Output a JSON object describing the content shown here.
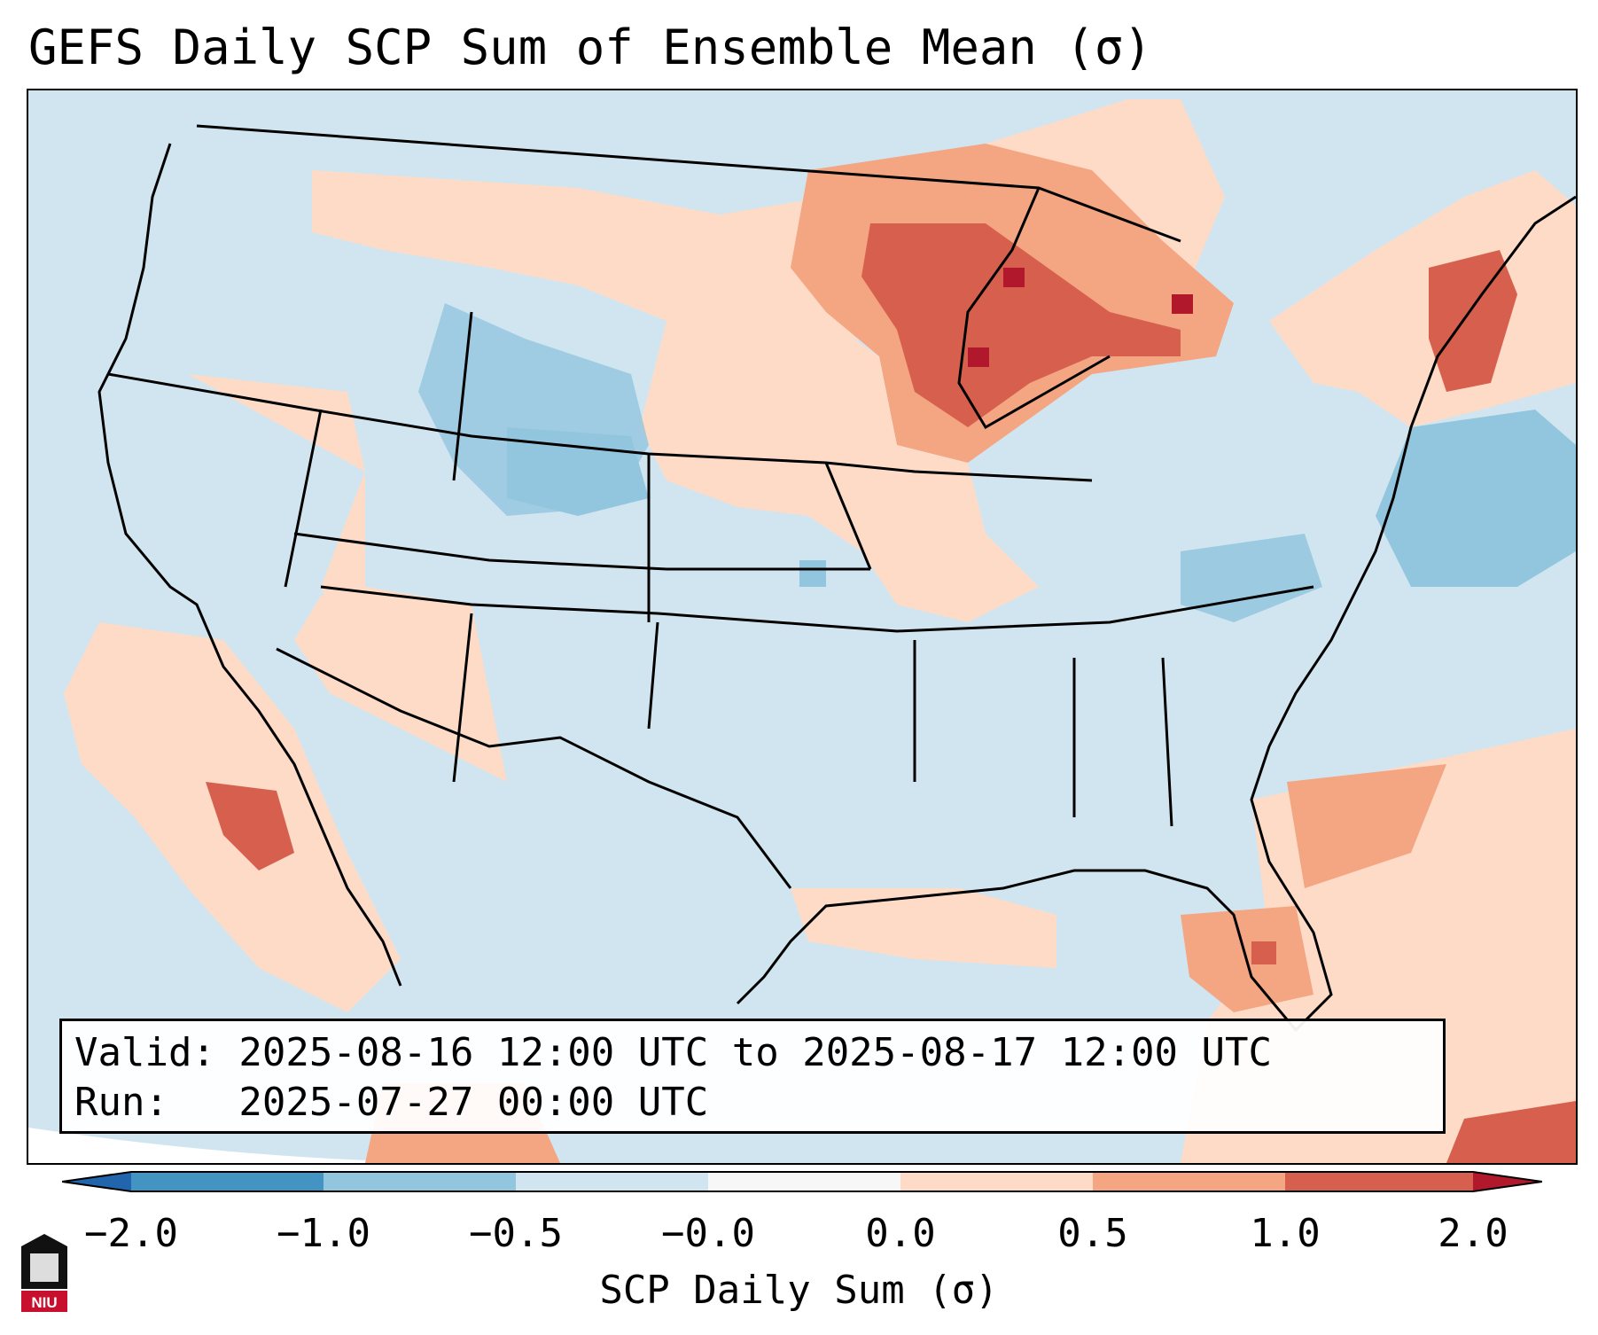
{
  "title": "GEFS Daily SCP Sum of Ensemble Mean (σ)",
  "info": {
    "valid_line": "Valid: 2025-08-16 12:00 UTC to 2025-08-17 12:00 UTC",
    "run_line": "Run:   2025-07-27 00:00 UTC"
  },
  "colorbar": {
    "label": "SCP Daily Sum (σ)",
    "ticks": [
      "−2.0",
      "−1.0",
      "−0.5",
      "−0.0",
      "0.0",
      "0.5",
      "1.0",
      "2.0"
    ],
    "bins": [
      {
        "range": "< -2.0",
        "color": "#2166ac"
      },
      {
        "range": "-2.0 to -1.0",
        "color": "#4393c3"
      },
      {
        "range": "-1.0 to -0.5",
        "color": "#92c5de"
      },
      {
        "range": "-0.5 to -0.0",
        "color": "#d1e5f0"
      },
      {
        "range": "-0.0 to 0.0",
        "color": "#f7f7f7"
      },
      {
        "range": "0.0 to 0.5",
        "color": "#fddbc7"
      },
      {
        "range": "0.5 to 1.0",
        "color": "#f4a582"
      },
      {
        "range": "1.0 to 2.0",
        "color": "#d6604d"
      },
      {
        "range": "> 2.0",
        "color": "#b2182b"
      }
    ]
  },
  "logo": {
    "text": "NIU",
    "color": "#c8102e"
  }
}
